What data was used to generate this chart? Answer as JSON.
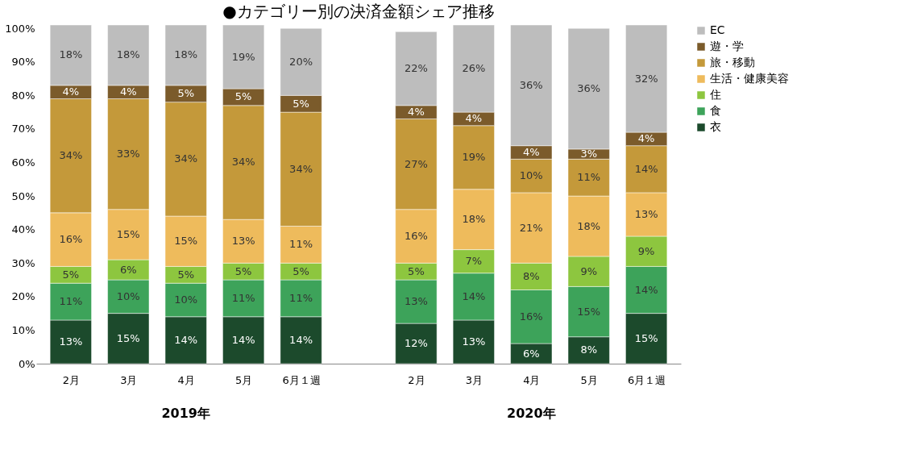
{
  "chart_data": {
    "type": "bar",
    "stacked": true,
    "title": "●カテゴリー別の決済金額シェア推移",
    "categories": [
      "2月",
      "3月",
      "4月",
      "5月",
      "6月１週",
      "2月",
      "3月",
      "4月",
      "5月",
      "6月１週"
    ],
    "annotations": [
      "2019年",
      "2020年"
    ],
    "series": [
      {
        "name": "衣",
        "color": "#1c4a2c",
        "values": [
          13,
          15,
          14,
          14,
          14,
          12,
          13,
          6,
          8,
          15
        ],
        "value_labels": [
          "13%",
          "15%",
          "14%",
          "14%",
          "14%",
          "12%",
          "13%",
          "6%",
          "8%",
          "15%"
        ]
      },
      {
        "name": "食",
        "color": "#3da35a",
        "values": [
          11,
          10,
          10,
          11,
          11,
          13,
          14,
          16,
          15,
          14
        ],
        "value_labels": [
          "11%",
          "10%",
          "10%",
          "11%",
          "11%",
          "13%",
          "14%",
          "16%",
          "15%",
          "14%"
        ]
      },
      {
        "name": "住",
        "color": "#8dc63f",
        "values": [
          5,
          6,
          5,
          5,
          5,
          5,
          7,
          8,
          9,
          9
        ],
        "value_labels": [
          "5%",
          "6%",
          "5%",
          "5%",
          "5%",
          "5%",
          "7%",
          "8%",
          "9%",
          "9%"
        ]
      },
      {
        "name": "生活・健康美容",
        "color": "#eebb5c",
        "values": [
          16,
          15,
          15,
          13,
          11,
          16,
          18,
          21,
          18,
          13
        ],
        "value_labels": [
          "16%",
          "15%",
          "15%",
          "13%",
          "11%",
          "16%",
          "18%",
          "21%",
          "18%",
          "13%"
        ]
      },
      {
        "name": "旅・移動",
        "color": "#c4993a",
        "values": [
          34,
          33,
          34,
          34,
          34,
          27,
          19,
          10,
          11,
          14
        ],
        "value_labels": [
          "34%",
          "33%",
          "34%",
          "34%",
          "34%",
          "27%",
          "19%",
          "10%",
          "11%",
          "14%"
        ]
      },
      {
        "name": "遊・学",
        "color": "#7b5b2b",
        "values": [
          4,
          4,
          5,
          5,
          5,
          4,
          4,
          4,
          3,
          4
        ],
        "value_labels": [
          "4%",
          "4%",
          "5%",
          "5%",
          "5%",
          "4%",
          "4%",
          "4%",
          "3%",
          "4%"
        ]
      },
      {
        "name": "EC",
        "color": "#bdbdbd",
        "values": [
          18,
          18,
          18,
          19,
          20,
          22,
          26,
          36,
          36,
          32
        ],
        "value_labels": [
          "18%",
          "18%",
          "18%",
          "19%",
          "20%",
          "22%",
          "26%",
          "36%",
          "36%",
          "32%"
        ]
      }
    ],
    "ylim": [
      0,
      101
    ],
    "yticks": [
      {
        "value": 0,
        "label": "0%"
      },
      {
        "value": 10,
        "label": "10%"
      },
      {
        "value": 20,
        "label": "20%"
      },
      {
        "value": 30,
        "label": "30%"
      },
      {
        "value": 40,
        "label": "40%"
      },
      {
        "value": 50,
        "label": "50%"
      },
      {
        "value": 60,
        "label": "60%"
      },
      {
        "value": 70,
        "label": "70%"
      },
      {
        "value": 80,
        "label": "80%"
      },
      {
        "value": 90,
        "label": "90%"
      },
      {
        "value": 100,
        "label": "100%"
      }
    ],
    "grid": false,
    "legend": "right"
  }
}
